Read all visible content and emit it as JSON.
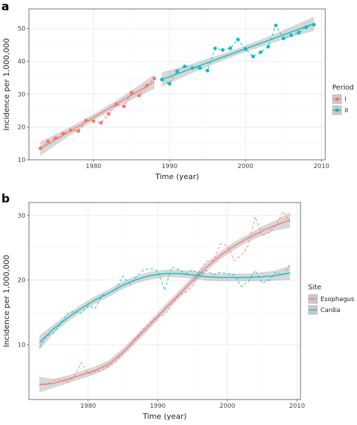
{
  "panels": [
    {
      "label": "a"
    },
    {
      "label": "b"
    }
  ],
  "chart_data": [
    {
      "type": "line",
      "panel": "a",
      "title": "",
      "xlabel": "Time (year)",
      "ylabel": "Incidence per 1,000,000",
      "xlim": [
        1971.5,
        2010.5
      ],
      "ylim": [
        10,
        56
      ],
      "xticks": [
        1980,
        1990,
        2000,
        2010
      ],
      "yticks": [
        10,
        20,
        30,
        40,
        50
      ],
      "grid": true,
      "legend": {
        "title": "Period",
        "position": "right"
      },
      "series": [
        {
          "name": "I",
          "color": "#F8766D",
          "x": [
            1973,
            1974,
            1975,
            1976,
            1977,
            1978,
            1979,
            1980,
            1981,
            1982,
            1983,
            1984,
            1985,
            1986,
            1987,
            1988
          ],
          "y": [
            13.5,
            15.6,
            16.6,
            18.0,
            19.0,
            18.8,
            22.0,
            21.8,
            21.3,
            24.0,
            27.0,
            26.3,
            30.5,
            29.6,
            32.6,
            34.8
          ],
          "fit": {
            "x": [
              1973,
              1988
            ],
            "y": [
              13.4,
              33.8
            ]
          }
        },
        {
          "name": "II",
          "color": "#00BFC4",
          "x": [
            1989,
            1990,
            1991,
            1992,
            1993,
            1994,
            1995,
            1996,
            1997,
            1998,
            1999,
            2000,
            2001,
            2002,
            2003,
            2004,
            2005,
            2006,
            2007,
            2008,
            2009
          ],
          "y": [
            34.5,
            33.2,
            37.0,
            38.5,
            38.0,
            38.0,
            37.2,
            44.0,
            43.5,
            44.0,
            46.7,
            43.8,
            41.5,
            42.8,
            44.5,
            51.0,
            47.0,
            48.0,
            48.8,
            50.5,
            51.2
          ],
          "fit": {
            "x": [
              1989,
              2009
            ],
            "y": [
              34.5,
              51.5
            ]
          }
        }
      ]
    },
    {
      "type": "line",
      "panel": "b",
      "title": "",
      "xlabel": "Time (year)",
      "ylabel": "Incidence per 1,000,000",
      "xlim": [
        1971.5,
        2010.5
      ],
      "ylim": [
        1.5,
        32
      ],
      "xticks": [
        1980,
        1990,
        2000,
        2010
      ],
      "yticks": [
        10,
        20,
        30
      ],
      "grid": true,
      "legend": {
        "title": "Site",
        "position": "right"
      },
      "series": [
        {
          "name": "Esophagus",
          "color": "#F8766D",
          "x": [
            1973,
            1974,
            1975,
            1976,
            1977,
            1978,
            1979,
            1980,
            1981,
            1982,
            1983,
            1984,
            1985,
            1986,
            1987,
            1988,
            1989,
            1990,
            1991,
            1992,
            1993,
            1994,
            1995,
            1996,
            1997,
            1998,
            1999,
            2000,
            2001,
            2002,
            2003,
            2004,
            2005,
            2006,
            2007,
            2008,
            2009
          ],
          "y": [
            3.9,
            3.8,
            4.5,
            4.6,
            4.2,
            5.0,
            7.2,
            5.5,
            5.8,
            6.0,
            6.8,
            7.4,
            8.8,
            10.0,
            11.2,
            12.5,
            13.5,
            14.4,
            14.6,
            16.2,
            17.6,
            18.1,
            19.0,
            21.4,
            22.9,
            23.0,
            25.6,
            25.3,
            23.0,
            23.8,
            25.3,
            29.8,
            26.8,
            27.4,
            28.5,
            30.6,
            29.0
          ],
          "smooth_x": [
            1973,
            1975,
            1977,
            1979,
            1981,
            1983,
            1985,
            1987,
            1989,
            1991,
            1993,
            1995,
            1997,
            1999,
            2001,
            2003,
            2005,
            2007,
            2009
          ],
          "smooth_y": [
            3.8,
            4.0,
            4.6,
            5.3,
            6.0,
            7.0,
            8.8,
            11.0,
            13.2,
            15.5,
            17.7,
            19.9,
            22.0,
            23.8,
            25.3,
            26.5,
            27.6,
            28.5,
            29.3
          ],
          "band": [
            1.2,
            0.7,
            0.6,
            0.6,
            0.6,
            0.6,
            0.6,
            0.6,
            0.6,
            0.6,
            0.6,
            0.6,
            0.6,
            0.6,
            0.6,
            0.6,
            0.7,
            0.8,
            1.2
          ]
        },
        {
          "name": "Cardia",
          "color": "#00BFC4",
          "x": [
            1973,
            1974,
            1975,
            1976,
            1977,
            1978,
            1979,
            1980,
            1981,
            1982,
            1983,
            1984,
            1985,
            1986,
            1987,
            1988,
            1989,
            1990,
            1991,
            1992,
            1993,
            1994,
            1995,
            1996,
            1997,
            1998,
            1999,
            2000,
            2001,
            2002,
            2003,
            2004,
            2005,
            2006,
            2007,
            2008,
            2009
          ],
          "y": [
            9.6,
            11.3,
            11.8,
            13.2,
            14.8,
            15.2,
            14.8,
            16.0,
            15.6,
            17.6,
            18.0,
            18.6,
            20.6,
            19.4,
            20.6,
            21.6,
            21.8,
            21.4,
            18.4,
            22.0,
            21.6,
            21.0,
            21.6,
            20.8,
            21.5,
            20.8,
            21.2,
            21.0,
            20.8,
            19.0,
            19.8,
            21.5,
            19.5,
            20.0,
            21.2,
            20.8,
            22.4
          ],
          "smooth_x": [
            1973,
            1975,
            1977,
            1979,
            1981,
            1983,
            1985,
            1987,
            1989,
            1991,
            1993,
            1995,
            1997,
            1999,
            2001,
            2003,
            2005,
            2007,
            2009
          ],
          "smooth_y": [
            10.3,
            12.4,
            14.1,
            15.6,
            16.9,
            18.0,
            19.2,
            20.1,
            20.7,
            21.0,
            21.0,
            20.8,
            20.5,
            20.4,
            20.4,
            20.4,
            20.5,
            20.7,
            21.1
          ],
          "band": [
            1.1,
            0.7,
            0.6,
            0.6,
            0.6,
            0.6,
            0.6,
            0.6,
            0.6,
            0.6,
            0.6,
            0.6,
            0.6,
            0.6,
            0.6,
            0.6,
            0.7,
            0.8,
            1.1
          ]
        }
      ]
    }
  ]
}
